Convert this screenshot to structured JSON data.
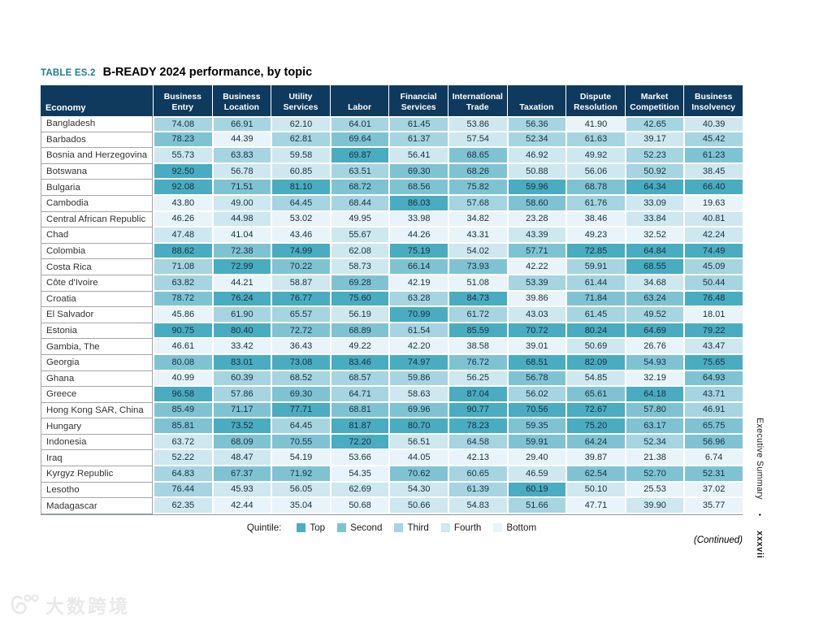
{
  "page": {
    "table_label": "TABLE ES.2",
    "title": "B-READY 2024 performance, by topic",
    "continued_note": "(Continued)",
    "margin": {
      "section": "Executive Summary",
      "bullet": "•",
      "page_number": "xxxvii"
    },
    "watermark": {
      "icon": "dashu-logo-icon",
      "text": "大数跨境"
    }
  },
  "colors": {
    "header_bg": "#0f3a5e",
    "label_teal": "#1b7e98",
    "economy_grid": "#a0a5ab"
  },
  "legend": {
    "label": "Quintile:",
    "items": [
      {
        "label": "Top",
        "color": "#4aacc0"
      },
      {
        "label": "Second",
        "color": "#7fc3d3"
      },
      {
        "label": "Third",
        "color": "#a6d4e0"
      },
      {
        "label": "Fourth",
        "color": "#cfe7ef"
      },
      {
        "label": "Bottom",
        "color": "#e8f4f9"
      }
    ]
  },
  "table": {
    "economy_header": "Economy",
    "topic_headers": [
      "Business Entry",
      "Business Location",
      "Utility Services",
      "Labor",
      "Financial Services",
      "International Trade",
      "Taxation",
      "Dispute Resolution",
      "Market Competition",
      "Business Insolvency"
    ],
    "rows": [
      {
        "economy": "Bangladesh",
        "values": [
          "74.08",
          "66.91",
          "62.10",
          "64.01",
          "61.45",
          "53.86",
          "56.36",
          "41.90",
          "42.65",
          "40.39"
        ]
      },
      {
        "economy": "Barbados",
        "values": [
          "78.23",
          "44.39",
          "62.81",
          "69.64",
          "61.37",
          "57.54",
          "52.34",
          "61.63",
          "39.17",
          "45.42"
        ]
      },
      {
        "economy": "Bosnia and Herzegovina",
        "values": [
          "55.73",
          "63.83",
          "59.58",
          "69.87",
          "56.41",
          "68.65",
          "46.92",
          "49.92",
          "52.23",
          "61.23"
        ]
      },
      {
        "economy": "Botswana",
        "values": [
          "92.50",
          "56.78",
          "60.85",
          "63.51",
          "69.30",
          "68.26",
          "50.88",
          "56.06",
          "50.92",
          "38.45"
        ]
      },
      {
        "economy": "Bulgaria",
        "values": [
          "92.08",
          "71.51",
          "81.10",
          "68.72",
          "68.56",
          "75.82",
          "59.96",
          "68.78",
          "64.34",
          "66.40"
        ]
      },
      {
        "economy": "Cambodia",
        "values": [
          "43.80",
          "49.00",
          "64.45",
          "68.44",
          "86.03",
          "57.68",
          "58.60",
          "61.76",
          "33.09",
          "19.63"
        ]
      },
      {
        "economy": "Central African Republic",
        "values": [
          "46.26",
          "44.98",
          "53.02",
          "49.95",
          "33.98",
          "34.82",
          "23.28",
          "38.46",
          "33.84",
          "40.81"
        ]
      },
      {
        "economy": "Chad",
        "values": [
          "47.48",
          "41.04",
          "43.46",
          "55.67",
          "44.26",
          "43.31",
          "43.39",
          "49.23",
          "32.52",
          "42.24"
        ]
      },
      {
        "economy": "Colombia",
        "values": [
          "88.62",
          "72.38",
          "74.99",
          "62.08",
          "75.19",
          "54.02",
          "57.71",
          "72.85",
          "64.84",
          "74.49"
        ]
      },
      {
        "economy": "Costa Rica",
        "values": [
          "71.08",
          "72.99",
          "70.22",
          "58.73",
          "66.14",
          "73.93",
          "42.22",
          "59.91",
          "68.55",
          "45.09"
        ]
      },
      {
        "economy": "Côte d'Ivoire",
        "values": [
          "63.82",
          "44.21",
          "58.87",
          "69.28",
          "42.19",
          "51.08",
          "53.39",
          "61.44",
          "34.68",
          "50.44"
        ]
      },
      {
        "economy": "Croatia",
        "values": [
          "78.72",
          "76.24",
          "76.77",
          "75.60",
          "63.28",
          "84.73",
          "39.86",
          "71.84",
          "63.24",
          "76.48"
        ]
      },
      {
        "economy": "El Salvador",
        "values": [
          "45.86",
          "61.90",
          "65.57",
          "56.19",
          "70.99",
          "61.72",
          "43.03",
          "61.45",
          "49.52",
          "18.01"
        ]
      },
      {
        "economy": "Estonia",
        "values": [
          "90.75",
          "80.40",
          "72.72",
          "68.89",
          "61.54",
          "85.59",
          "70.72",
          "80.24",
          "64.69",
          "79.22"
        ]
      },
      {
        "economy": "Gambia, The",
        "values": [
          "46.61",
          "33.42",
          "36.43",
          "49.22",
          "42.20",
          "38.58",
          "39.01",
          "50.69",
          "26.76",
          "43.47"
        ]
      },
      {
        "economy": "Georgia",
        "values": [
          "80.08",
          "83.01",
          "73.08",
          "83.46",
          "74.97",
          "76.72",
          "68.51",
          "82.09",
          "54.93",
          "75.65"
        ]
      },
      {
        "economy": "Ghana",
        "values": [
          "40.99",
          "60.39",
          "68.52",
          "68.57",
          "59.86",
          "56.25",
          "56.78",
          "54.85",
          "32.19",
          "64.93"
        ]
      },
      {
        "economy": "Greece",
        "values": [
          "96.58",
          "57.86",
          "69.30",
          "64.71",
          "58.63",
          "87.04",
          "56.02",
          "65.61",
          "64.18",
          "43.71"
        ]
      },
      {
        "economy": "Hong Kong SAR, China",
        "values": [
          "85.49",
          "71.17",
          "77.71",
          "68.81",
          "69.96",
          "90.77",
          "70.56",
          "72.67",
          "57.80",
          "46.91"
        ]
      },
      {
        "economy": "Hungary",
        "values": [
          "85.81",
          "73.52",
          "64.45",
          "81.87",
          "80.70",
          "78.23",
          "59.35",
          "75.20",
          "63.17",
          "65.75"
        ]
      },
      {
        "economy": "Indonesia",
        "values": [
          "63.72",
          "68.09",
          "70.55",
          "72.20",
          "56.51",
          "64.58",
          "59.91",
          "64.24",
          "52.34",
          "56.96"
        ]
      },
      {
        "economy": "Iraq",
        "values": [
          "52.22",
          "48.47",
          "54.19",
          "53.66",
          "44.05",
          "42.13",
          "29.40",
          "39.87",
          "21.38",
          "6.74"
        ]
      },
      {
        "economy": "Kyrgyz Republic",
        "values": [
          "64.83",
          "67.37",
          "71.92",
          "54.35",
          "70.62",
          "60.65",
          "46.59",
          "62.54",
          "52.70",
          "52.31"
        ]
      },
      {
        "economy": "Lesotho",
        "values": [
          "76.44",
          "45.93",
          "56.05",
          "62.69",
          "54.30",
          "61.39",
          "60.19",
          "50.10",
          "25.53",
          "37.02"
        ]
      },
      {
        "economy": "Madagascar",
        "values": [
          "62.35",
          "42.44",
          "35.04",
          "50.68",
          "50.66",
          "54.83",
          "51.66",
          "47.71",
          "39.90",
          "35.77"
        ]
      }
    ]
  }
}
